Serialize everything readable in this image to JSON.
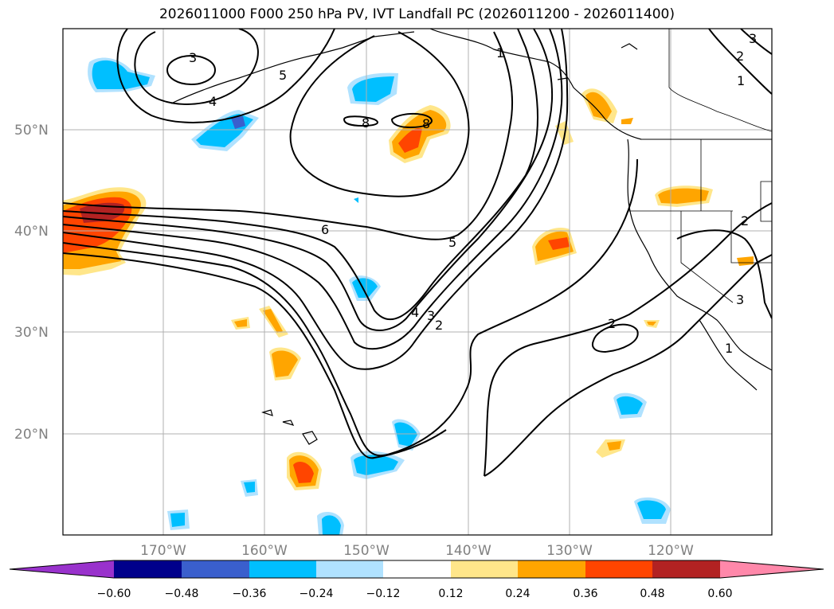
{
  "title": "2026011000 F000 250 hPa PV, IVT Landfall PC (2026011200 - 2026011400)",
  "map": {
    "lat_labels": [
      "50°N",
      "40°N",
      "30°N",
      "20°N"
    ],
    "lon_labels": [
      "170°W",
      "160°W",
      "150°W",
      "140°W",
      "130°W",
      "120°W"
    ],
    "pv_contour_labels": [
      "3",
      "4",
      "5",
      "8",
      "8",
      "6",
      "5",
      "4",
      "3",
      "2",
      "1",
      "2",
      "1",
      "3",
      "2",
      "3",
      "1",
      "2"
    ]
  },
  "colorbar": {
    "ticks": [
      "−0.60",
      "−0.48",
      "−0.36",
      "−0.24",
      "−0.12",
      "0.12",
      "0.24",
      "0.36",
      "0.48",
      "0.60"
    ],
    "under_color": "#9932cc",
    "over_color": "#ff88aa",
    "colors": [
      "#00008b",
      "#3a5fcd",
      "#00bfff",
      "#b0e2ff",
      "#ffffff",
      "#ffe68a",
      "#ffa500",
      "#ff4500",
      "#b22222"
    ]
  }
}
